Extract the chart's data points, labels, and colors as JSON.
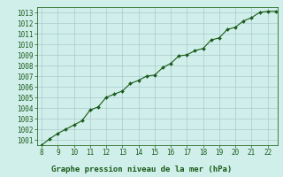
{
  "x": [
    8,
    8.5,
    9,
    9.5,
    10,
    10.5,
    11,
    11.5,
    12,
    12.5,
    13,
    13.5,
    14,
    14.5,
    15,
    15.5,
    16,
    16.5,
    17,
    17.5,
    18,
    18.5,
    19,
    19.5,
    20,
    20.5,
    21,
    21.5,
    22,
    22.5
  ],
  "y": [
    1000.5,
    1001.1,
    1001.6,
    1002.0,
    1002.4,
    1002.8,
    1003.8,
    1004.1,
    1005.0,
    1005.3,
    1005.6,
    1006.3,
    1006.6,
    1007.0,
    1007.1,
    1007.8,
    1008.2,
    1008.9,
    1009.0,
    1009.4,
    1009.6,
    1010.4,
    1010.6,
    1011.4,
    1011.6,
    1012.2,
    1012.5,
    1013.0,
    1013.1,
    1013.1
  ],
  "line_color": "#1a5c1a",
  "marker_color": "#1a5c1a",
  "bg_color": "#d0eeea",
  "grid_color": "#aacccc",
  "xlabel": "Graphe pression niveau de la mer (hPa)",
  "xlabel_color": "#1a5c1a",
  "ylim": [
    1000.5,
    1013.5
  ],
  "xlim": [
    7.7,
    22.6
  ],
  "yticks": [
    1001,
    1002,
    1003,
    1004,
    1005,
    1006,
    1007,
    1008,
    1009,
    1010,
    1011,
    1012,
    1013
  ],
  "xticks": [
    8,
    9,
    10,
    11,
    12,
    13,
    14,
    15,
    16,
    17,
    18,
    19,
    20,
    21,
    22
  ],
  "tick_label_fontsize": 5.5,
  "xlabel_fontsize": 6.5
}
